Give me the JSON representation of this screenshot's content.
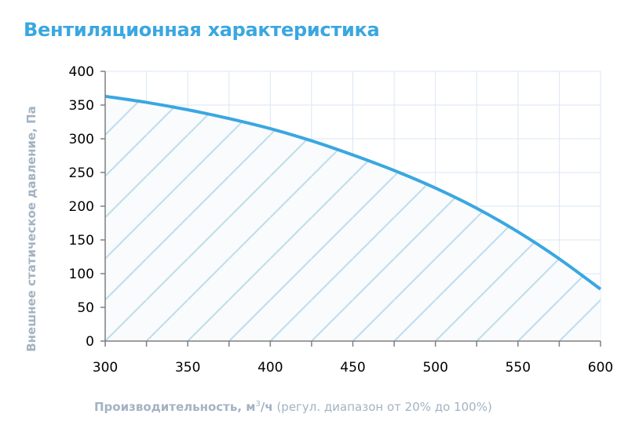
{
  "header": {
    "title": "Вентиляционная характеристика"
  },
  "axes": {
    "ylabel": "Внешнее статическое давление, Па",
    "xlabel_bold": "Производительность, м",
    "xlabel_sup": "3",
    "xlabel_unit": "/ч",
    "xlabel_note": " (регул. диапазон от 20% до 100%)"
  },
  "colors": {
    "title": "#3aa7e0",
    "curve": "#3aa7e0",
    "hatch": "#bcdceb",
    "grid": "#dbe6f4",
    "axis_label": "#a3b3c2"
  },
  "chart_data": {
    "type": "area",
    "title": "Вентиляционная характеристика",
    "xlabel": "Производительность, м³/ч (регул. диапазон от 20% до 100%)",
    "ylabel": "Внешнее статическое давление, Па",
    "x": [
      300,
      325,
      350,
      375,
      400,
      425,
      450,
      475,
      500,
      525,
      550,
      575,
      600
    ],
    "series": [
      {
        "name": "Вентиляционная характеристика",
        "values": [
          363,
          354,
          343,
          330,
          315,
          297,
          276,
          253,
          227,
          197,
          162,
          122,
          77
        ]
      }
    ],
    "xlim": [
      300,
      600
    ],
    "ylim": [
      0,
      400
    ],
    "xticks": [
      300,
      350,
      400,
      450,
      500,
      550,
      600
    ],
    "yticks": [
      0,
      50,
      100,
      150,
      200,
      250,
      300,
      350,
      400
    ],
    "grid": true,
    "fill": "hatched area under curve"
  }
}
